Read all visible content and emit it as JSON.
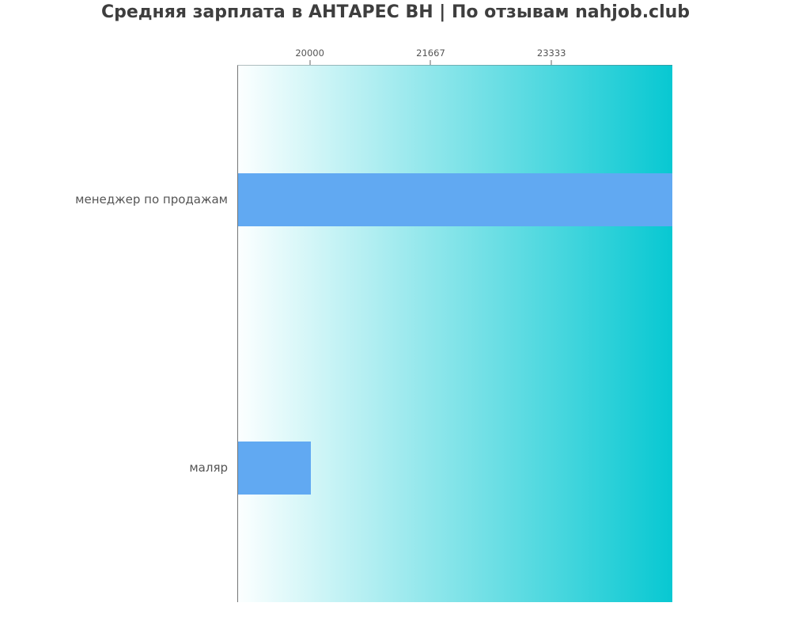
{
  "title": "Средняя зарплата в АНТАРЕС ВН | По отзывам nahjob.club",
  "chart_data": {
    "type": "bar",
    "orientation": "horizontal",
    "title": "Средняя зарплата в АНТАРЕС ВН | По отзывам nahjob.club",
    "categories": [
      "менеджер по продажам",
      "маляр"
    ],
    "values": [
      25000,
      20000
    ],
    "xlabel": "",
    "ylabel": "",
    "xlim": [
      19000,
      25000
    ],
    "xticks": [
      20000,
      21667,
      23333
    ],
    "xtick_labels": [
      "20000",
      "21667",
      "23333"
    ],
    "ticks_position": "top",
    "grid": "off",
    "legend": "none",
    "bar_height_pct": 9.9,
    "bar_color": "#61a9f2",
    "plot_bg_gradient_left": "#fcffff",
    "plot_bg_gradient_right": "#08c8d2",
    "text_color": "#555555",
    "title_color": "#3e3e3e"
  }
}
